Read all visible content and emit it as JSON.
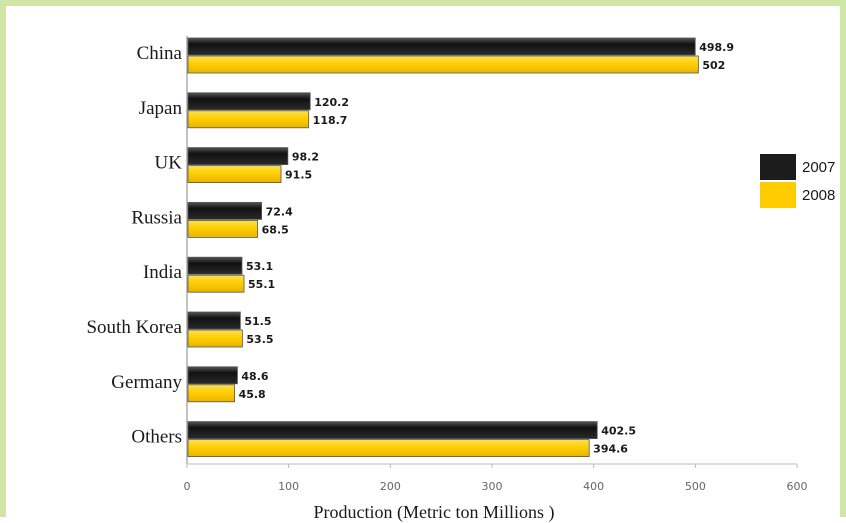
{
  "chart_data": {
    "type": "bar",
    "orientation": "horizontal",
    "categories": [
      "China",
      "Japan",
      "UK",
      "Russia",
      "India",
      "South Korea",
      "Germany",
      "Others"
    ],
    "series": [
      {
        "name": "2007",
        "color": "#1c1c1c",
        "values": [
          498.9,
          120.2,
          98.2,
          72.4,
          53.1,
          51.5,
          48.6,
          402.5
        ],
        "labels": [
          "498.9",
          "120.2",
          "98.2",
          "72.4",
          "53.1",
          "51.5",
          "48.6",
          "402.5"
        ]
      },
      {
        "name": "2008",
        "color": "#ffcc00",
        "values": [
          502,
          118.7,
          91.5,
          68.5,
          55.1,
          53.5,
          45.8,
          394.6
        ],
        "labels": [
          "502",
          "118.7",
          "91.5",
          "68.5",
          "55.1",
          "53.5",
          "45.8",
          "394.6"
        ]
      }
    ],
    "x_ticks": [
      "0",
      "100",
      "200",
      "300",
      "400",
      "500",
      "600"
    ],
    "xlim": [
      0,
      600
    ],
    "xlabel": "Production  (Metric ton Millions )",
    "ylabel": "",
    "title": "",
    "grid": false,
    "legend_position": "right"
  }
}
